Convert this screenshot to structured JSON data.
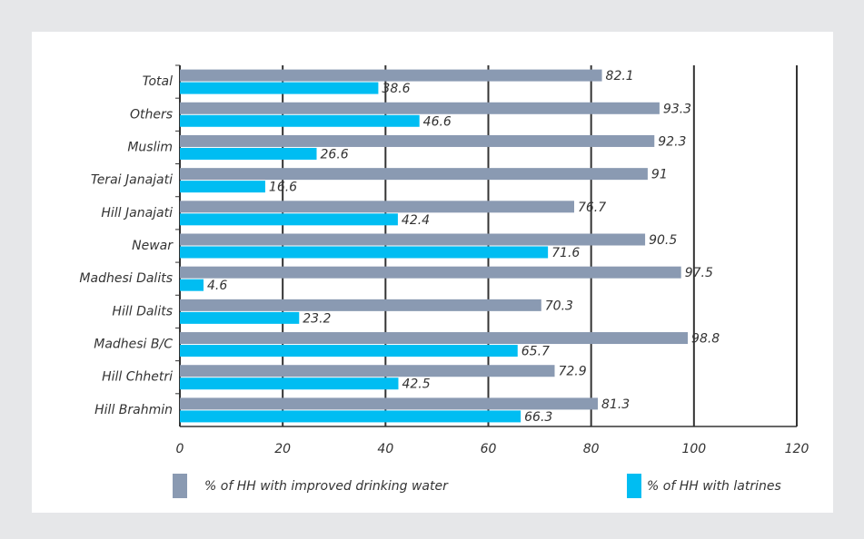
{
  "chart_data": {
    "type": "bar",
    "orientation": "horizontal",
    "categories": [
      "Total",
      "Others",
      "Muslim",
      "Terai Janajati",
      "Hill Janajati",
      "Newar",
      "Madhesi Dalits",
      "Hill Dalits",
      "Madhesi B/C",
      "Hill Chhetri",
      "Hill Brahmin"
    ],
    "series": [
      {
        "name": "% of HH with improved drinking water",
        "color": "#8a9ab2",
        "values": [
          82.1,
          93.3,
          92.3,
          91,
          76.7,
          90.5,
          97.5,
          70.3,
          98.8,
          72.9,
          81.3
        ]
      },
      {
        "name": "% of HH with latrines",
        "color": "#00bdf2",
        "values": [
          38.6,
          46.6,
          26.6,
          16.6,
          42.4,
          71.6,
          4.6,
          23.2,
          65.7,
          42.5,
          66.3
        ]
      }
    ],
    "xlim": [
      0,
      120
    ],
    "xticks": [
      0,
      20,
      40,
      60,
      80,
      100,
      120
    ],
    "grid": true
  }
}
